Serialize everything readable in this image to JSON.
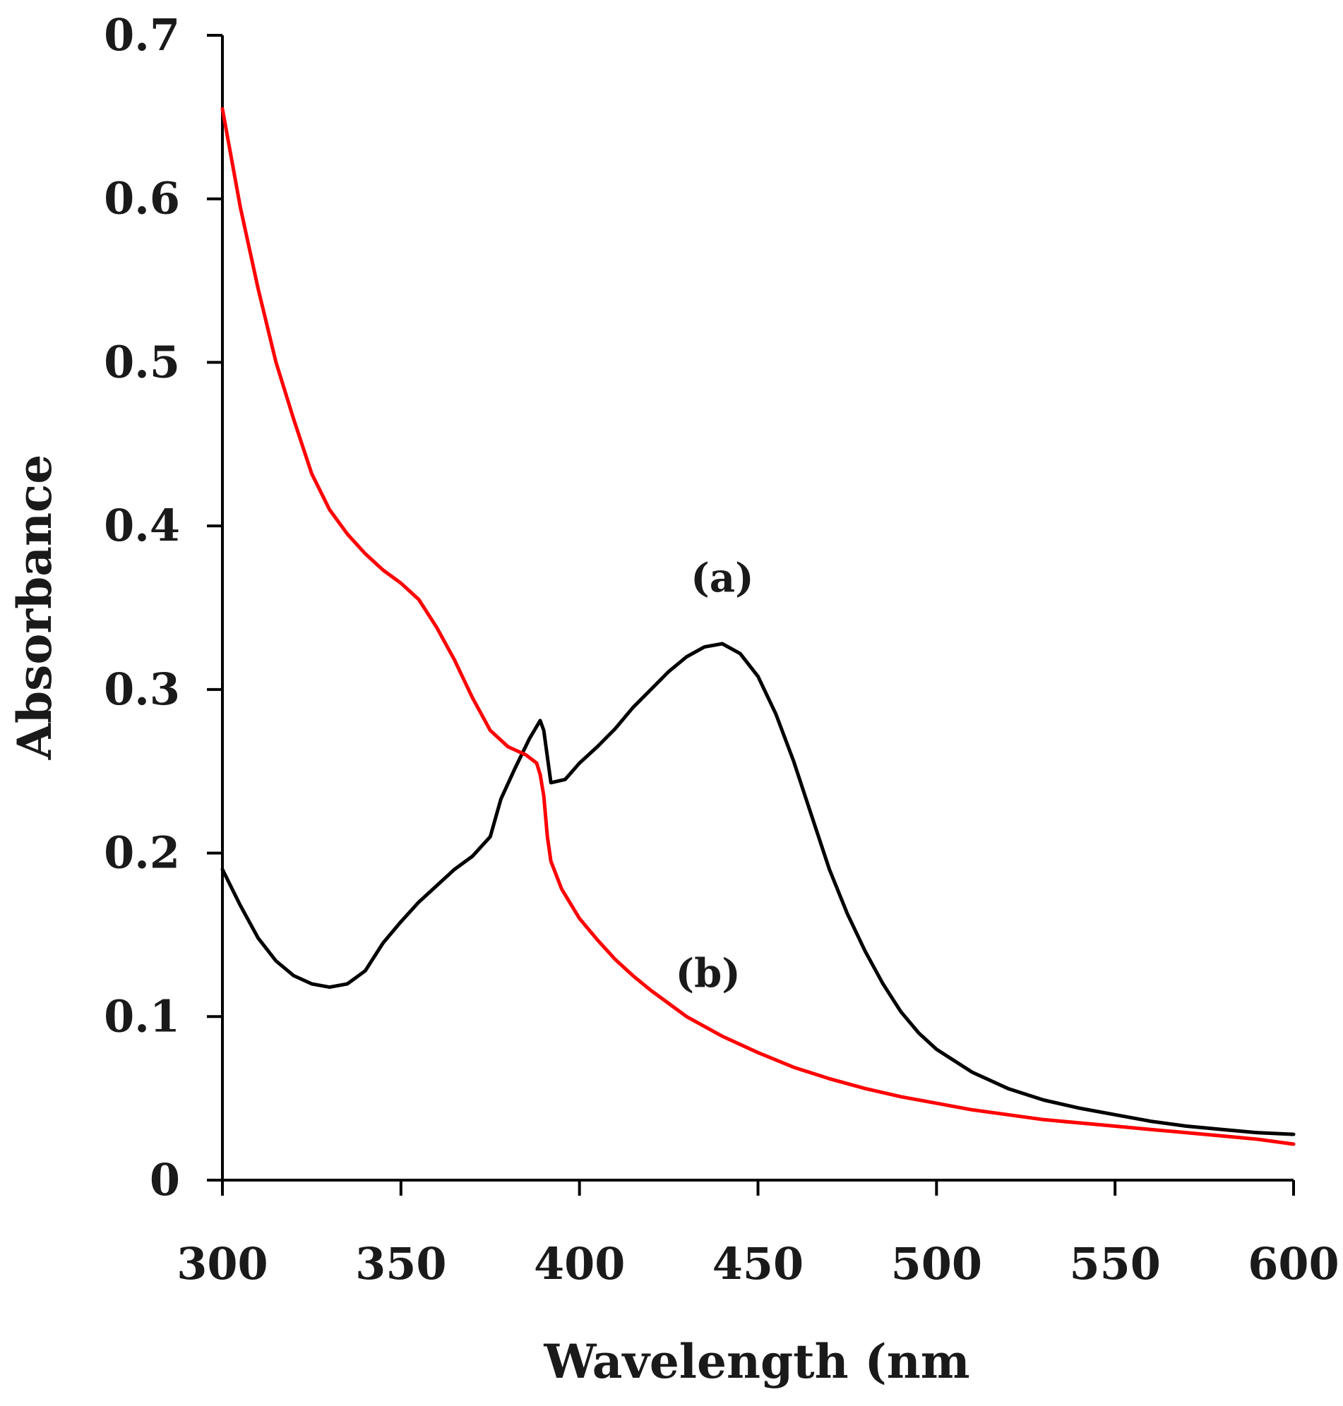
{
  "chart_data": {
    "type": "line",
    "title": "",
    "xlabel": "Wavelength (nm",
    "ylabel": "Absorbance",
    "xlim": [
      300,
      600
    ],
    "ylim": [
      0,
      0.7
    ],
    "xticks": [
      300,
      350,
      400,
      450,
      500,
      550,
      600
    ],
    "xtick_labels": [
      "300",
      "350",
      "400",
      "450",
      "500",
      "550",
      "600"
    ],
    "yticks": [
      0,
      0.1,
      0.2,
      0.3,
      0.4,
      0.5,
      0.6,
      0.7
    ],
    "ytick_labels": [
      "0",
      "0.1",
      "0.2",
      "0.3",
      "0.4",
      "0.5",
      "0.6",
      "0.7"
    ],
    "grid": false,
    "legend": "none",
    "series": [
      {
        "name": "(a)",
        "color": "#000000",
        "x": [
          300,
          305,
          310,
          315,
          320,
          325,
          330,
          335,
          340,
          345,
          350,
          355,
          360,
          365,
          370,
          375,
          378,
          382,
          386,
          389,
          390,
          392,
          396,
          400,
          405,
          410,
          415,
          420,
          425,
          430,
          435,
          440,
          445,
          450,
          455,
          460,
          465,
          470,
          475,
          480,
          485,
          490,
          495,
          500,
          510,
          520,
          530,
          540,
          550,
          560,
          570,
          580,
          590,
          600
        ],
        "y": [
          0.19,
          0.168,
          0.148,
          0.134,
          0.125,
          0.12,
          0.118,
          0.12,
          0.128,
          0.145,
          0.158,
          0.17,
          0.18,
          0.19,
          0.198,
          0.21,
          0.233,
          0.252,
          0.27,
          0.281,
          0.275,
          0.243,
          0.245,
          0.255,
          0.265,
          0.276,
          0.289,
          0.3,
          0.311,
          0.32,
          0.326,
          0.328,
          0.322,
          0.308,
          0.285,
          0.256,
          0.223,
          0.19,
          0.163,
          0.14,
          0.12,
          0.103,
          0.09,
          0.08,
          0.066,
          0.056,
          0.049,
          0.044,
          0.04,
          0.036,
          0.033,
          0.031,
          0.029,
          0.028
        ]
      },
      {
        "name": "(b)",
        "color": "#ff0000",
        "x": [
          300,
          305,
          310,
          315,
          320,
          325,
          330,
          335,
          340,
          345,
          350,
          355,
          360,
          365,
          370,
          375,
          380,
          385,
          388,
          389,
          390,
          391,
          392,
          395,
          400,
          405,
          410,
          415,
          420,
          425,
          430,
          440,
          450,
          460,
          470,
          480,
          490,
          500,
          510,
          520,
          530,
          540,
          550,
          560,
          570,
          580,
          590,
          600
        ],
        "y": [
          0.655,
          0.595,
          0.545,
          0.5,
          0.465,
          0.432,
          0.41,
          0.395,
          0.383,
          0.373,
          0.365,
          0.355,
          0.338,
          0.318,
          0.295,
          0.275,
          0.265,
          0.26,
          0.255,
          0.248,
          0.235,
          0.21,
          0.195,
          0.178,
          0.16,
          0.147,
          0.135,
          0.125,
          0.116,
          0.108,
          0.1,
          0.088,
          0.078,
          0.069,
          0.062,
          0.056,
          0.051,
          0.047,
          0.043,
          0.04,
          0.037,
          0.035,
          0.033,
          0.031,
          0.029,
          0.027,
          0.025,
          0.022
        ]
      }
    ],
    "annotations": [
      {
        "text": "(a)",
        "x": 440,
        "y": 0.36
      },
      {
        "text": "(b)",
        "x": 436,
        "y": 0.118
      }
    ]
  }
}
